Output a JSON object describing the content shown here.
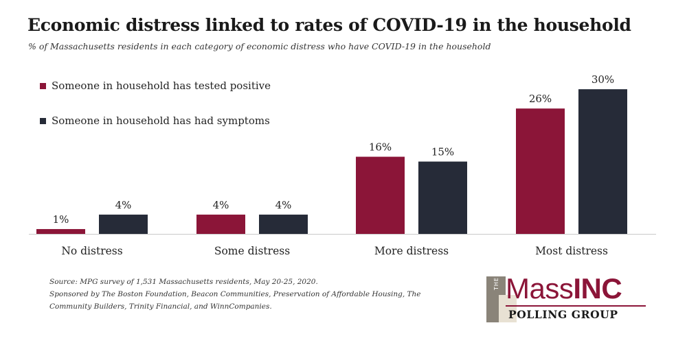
{
  "chart_data": {
    "type": "bar",
    "title": "Economic distress linked to rates of COVID-19 in the household",
    "subtitle": "% of Massachusetts residents in each category of economic distress who have COVID-19 in the household",
    "categories": [
      "No distress",
      "Some distress",
      "More distress",
      "Most distress"
    ],
    "series": [
      {
        "name": "Someone in household has tested positive",
        "values": [
          1,
          4,
          16,
          26
        ],
        "labels": [
          "1%",
          "4%",
          "16%",
          "26%"
        ],
        "color": "#8b1538"
      },
      {
        "name": "Someone in household has had symptoms",
        "values": [
          4,
          4,
          15,
          30
        ],
        "labels": [
          "4%",
          "4%",
          "15%",
          "30%"
        ],
        "color": "#262b38"
      }
    ],
    "ylim": [
      0,
      30
    ],
    "xlabel": "",
    "ylabel": "",
    "grid": false,
    "legend_position": "top-left"
  },
  "footnote": {
    "source": "Source: MPG survey of 1,531 Massachusetts residents, May 20-25, 2020.",
    "sponsors": "Sponsored by The Boston Foundation, Beacon Communities, Preservation of Affordable Housing, The Community Builders, Trinity Financial, and WinnCompanies."
  },
  "logo": {
    "the": "THE",
    "mass": "Mass",
    "inc": "INC",
    "sub": "POLLING GROUP"
  },
  "colors": {
    "positive": "#8b1538",
    "symptoms": "#262b38",
    "axis": "#c8c8c8"
  }
}
